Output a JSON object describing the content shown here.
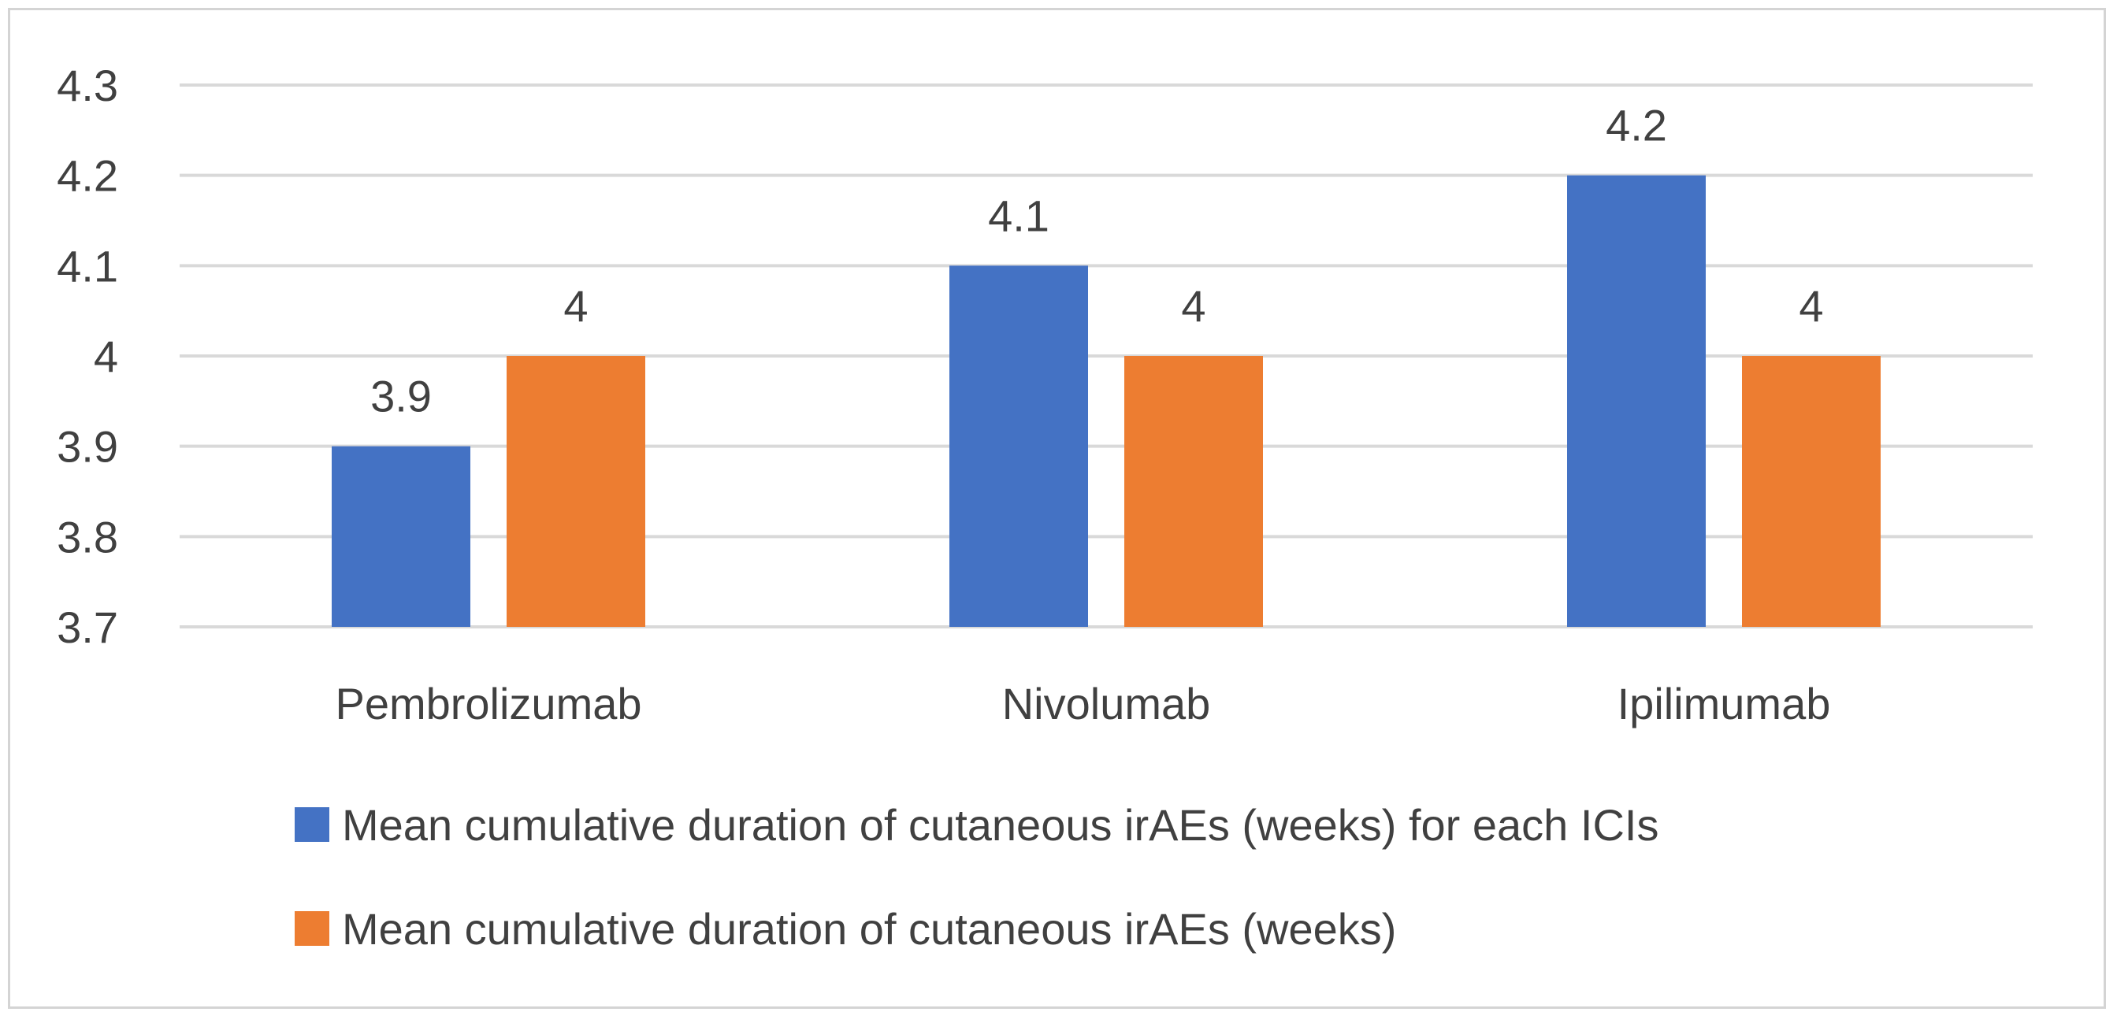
{
  "chart_data": {
    "type": "bar",
    "title": "",
    "xlabel": "",
    "ylabel": "",
    "categories": [
      "Pembrolizumab",
      "Nivolumab",
      "Ipilimumab"
    ],
    "series": [
      {
        "name": "Mean cumulative duration of cutaneous irAEs (weeks) for each ICIs",
        "color": "#4472C4",
        "values": [
          3.9,
          4.1,
          4.2
        ],
        "labels": [
          "3.9",
          "4.1",
          "4.2"
        ]
      },
      {
        "name": "Mean cumulative duration of cutaneous irAEs (weeks)",
        "color": "#ED7D31",
        "values": [
          4,
          4,
          4
        ],
        "labels": [
          "4",
          "4",
          "4"
        ]
      }
    ],
    "ylim": [
      3.7,
      4.3
    ],
    "yticks": [
      3.7,
      3.8,
      3.9,
      4,
      4.1,
      4.2,
      4.3
    ],
    "ytick_labels": [
      "3.7",
      "3.8",
      "3.9",
      "4",
      "4.1",
      "4.2",
      "4.3"
    ],
    "grid": true,
    "legend_position": "bottom",
    "gridline_color": "#d9d9d9",
    "text_color": "#404040"
  }
}
